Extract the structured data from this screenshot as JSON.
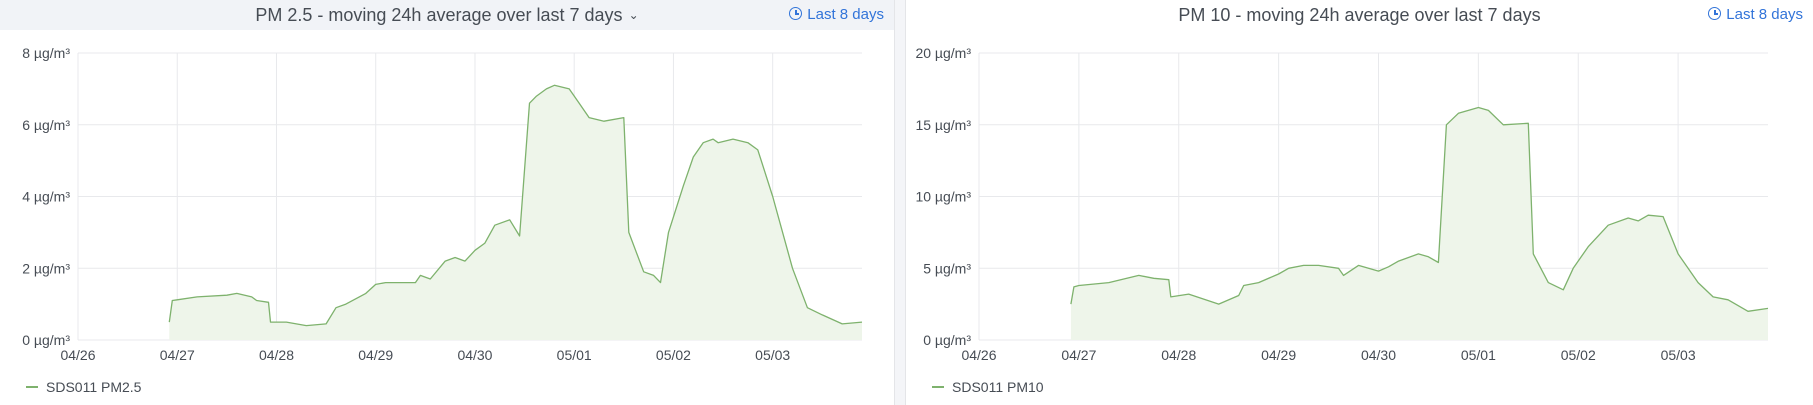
{
  "colors": {
    "series": "#7eb26d",
    "fill": "#eef5ea",
    "grid": "#e8e9ec",
    "time_range": "#3274d9"
  },
  "panels": [
    {
      "title": "PM 2.5 - moving 24h average over last 7 days",
      "has_menu_caret": true,
      "caret_icon": "chevron-down-icon",
      "time_range": "Last 8 days",
      "time_icon": "clock-icon",
      "legend": {
        "label": "SDS011 PM2.5",
        "placement": "bottom-left"
      }
    },
    {
      "title": "PM 10 - moving 24h average over last 7 days",
      "has_menu_caret": false,
      "time_range": "Last 8 days",
      "time_icon": "clock-icon",
      "legend": {
        "label": "SDS011 PM10",
        "placement": "bottom-left"
      }
    }
  ],
  "chart_data": [
    {
      "type": "area",
      "title": "PM 2.5 - moving 24h average over last 7 days",
      "x_ticks": [
        "04/26",
        "04/27",
        "04/28",
        "04/29",
        "04/30",
        "05/01",
        "05/02",
        "05/03"
      ],
      "y_ticks": [
        "0 µg/m³",
        "2 µg/m³",
        "4 µg/m³",
        "6 µg/m³",
        "8 µg/m³"
      ],
      "xlim_days": [
        0,
        7.9
      ],
      "ylim": [
        0,
        8
      ],
      "grid": true,
      "series": [
        {
          "name": "SDS011 PM2.5",
          "x_days": [
            0.92,
            0.95,
            1.0,
            1.2,
            1.5,
            1.6,
            1.75,
            1.8,
            1.92,
            1.94,
            2.1,
            2.3,
            2.5,
            2.6,
            2.7,
            2.9,
            3.0,
            3.1,
            3.4,
            3.45,
            3.55,
            3.7,
            3.8,
            3.9,
            4.0,
            4.1,
            4.2,
            4.35,
            4.45,
            4.55,
            4.62,
            4.72,
            4.8,
            4.95,
            5.05,
            5.15,
            5.3,
            5.5,
            5.55,
            5.7,
            5.8,
            5.87,
            5.95,
            6.1,
            6.2,
            6.3,
            6.4,
            6.45,
            6.6,
            6.75,
            6.85,
            7.0,
            7.2,
            7.35,
            7.5,
            7.7,
            7.9
          ],
          "values": [
            0.5,
            1.1,
            1.12,
            1.2,
            1.25,
            1.3,
            1.2,
            1.1,
            1.05,
            0.5,
            0.5,
            0.4,
            0.45,
            0.9,
            1.0,
            1.3,
            1.55,
            1.6,
            1.6,
            1.8,
            1.7,
            2.2,
            2.3,
            2.2,
            2.5,
            2.7,
            3.2,
            3.35,
            2.9,
            6.6,
            6.8,
            7.0,
            7.1,
            7.0,
            6.6,
            6.2,
            6.1,
            6.2,
            3.0,
            1.9,
            1.8,
            1.6,
            3.0,
            4.3,
            5.1,
            5.5,
            5.6,
            5.5,
            5.6,
            5.5,
            5.3,
            4.0,
            2.0,
            0.9,
            0.7,
            0.45,
            0.5
          ]
        }
      ]
    },
    {
      "type": "area",
      "title": "PM 10 - moving 24h average over last 7 days",
      "x_ticks": [
        "04/26",
        "04/27",
        "04/28",
        "04/29",
        "04/30",
        "05/01",
        "05/02",
        "05/03"
      ],
      "y_ticks": [
        "0 µg/m³",
        "5 µg/m³",
        "10 µg/m³",
        "15 µg/m³",
        "20 µg/m³"
      ],
      "xlim_days": [
        0,
        7.9
      ],
      "ylim": [
        0,
        20
      ],
      "grid": true,
      "series": [
        {
          "name": "SDS011 PM10",
          "x_days": [
            0.92,
            0.95,
            1.0,
            1.3,
            1.6,
            1.75,
            1.9,
            1.92,
            2.1,
            2.4,
            2.6,
            2.65,
            2.8,
            3.0,
            3.1,
            3.25,
            3.4,
            3.6,
            3.65,
            3.8,
            4.0,
            4.1,
            4.2,
            4.4,
            4.5,
            4.6,
            4.68,
            4.8,
            4.9,
            5.0,
            5.1,
            5.25,
            5.5,
            5.55,
            5.7,
            5.85,
            5.95,
            6.1,
            6.3,
            6.5,
            6.6,
            6.7,
            6.85,
            7.0,
            7.2,
            7.35,
            7.5,
            7.7,
            7.9
          ],
          "values": [
            2.5,
            3.7,
            3.8,
            4.0,
            4.5,
            4.3,
            4.2,
            3.0,
            3.2,
            2.5,
            3.1,
            3.8,
            4.0,
            4.6,
            5.0,
            5.2,
            5.2,
            5.0,
            4.5,
            5.2,
            4.8,
            5.1,
            5.5,
            6.0,
            5.8,
            5.4,
            15.0,
            15.8,
            16.0,
            16.2,
            16.0,
            15.0,
            15.1,
            6.0,
            4.0,
            3.5,
            5.0,
            6.5,
            8.0,
            8.5,
            8.3,
            8.7,
            8.6,
            6.0,
            4.0,
            3.0,
            2.8,
            2.0,
            2.2
          ]
        }
      ]
    }
  ]
}
